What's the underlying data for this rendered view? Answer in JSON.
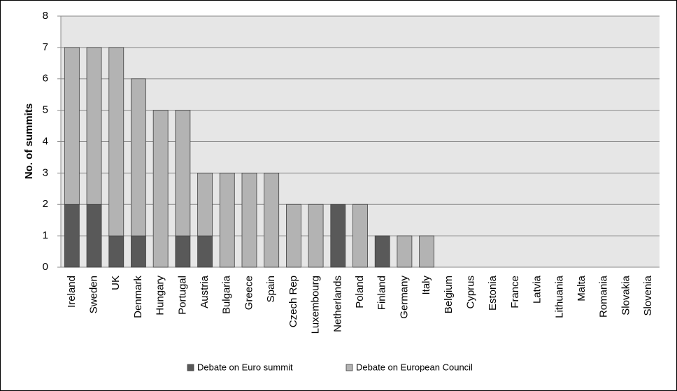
{
  "chart_data": {
    "type": "stacked_bar",
    "categories": [
      "Ireland",
      "Sweden",
      "UK",
      "Denmark",
      "Hungary",
      "Portugal",
      "Austria",
      "Bulgaria",
      "Greece",
      "Spain",
      "Czech Rep",
      "Luxembourg",
      "Netherlands",
      "Poland",
      "Finland",
      "Germany",
      "Italy",
      "Belgium",
      "Cyprus",
      "Estonia",
      "France",
      "Latvia",
      "Lithuania",
      "Malta",
      "Romania",
      "Slovakia",
      "Slovenia"
    ],
    "series": [
      {
        "name": "Debate on Euro summit",
        "color": "#595959",
        "values": [
          2,
          2,
          1,
          1,
          0,
          1,
          1,
          0,
          0,
          0,
          0,
          0,
          2,
          0,
          1,
          0,
          0,
          0,
          0,
          0,
          0,
          0,
          0,
          0,
          0,
          0,
          0
        ]
      },
      {
        "name": "Debate on European Council",
        "color": "#b3b3b3",
        "values": [
          5,
          5,
          6,
          5,
          5,
          4,
          2,
          3,
          3,
          3,
          2,
          2,
          0,
          2,
          0,
          1,
          1,
          0,
          0,
          0,
          0,
          0,
          0,
          0,
          0,
          0,
          0
        ]
      }
    ],
    "y_label": "No. of summits",
    "ylim": [
      0,
      8
    ],
    "yticks": [
      0,
      1,
      2,
      3,
      4,
      5,
      6,
      7,
      8
    ],
    "grid": true,
    "legend": "bottom"
  }
}
